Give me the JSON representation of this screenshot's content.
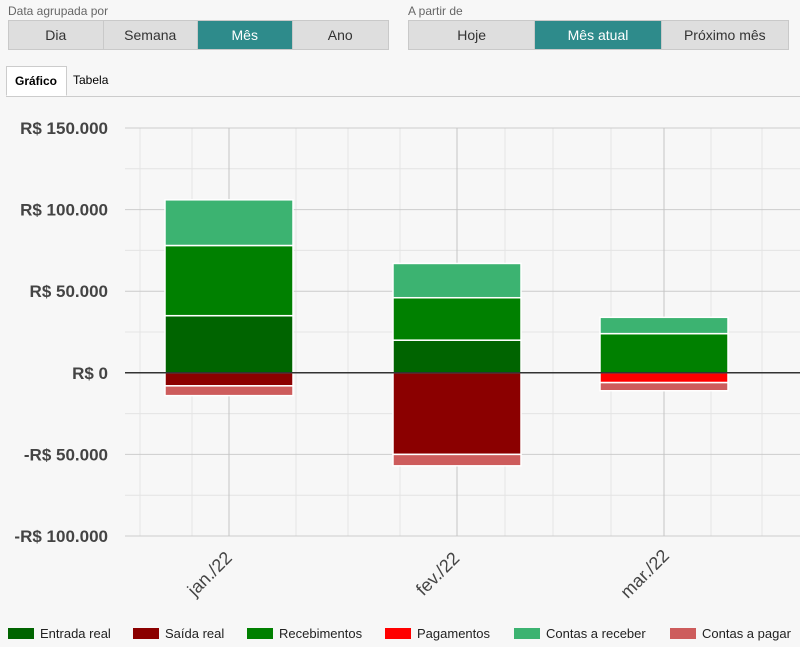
{
  "controls": {
    "grouped_by": {
      "label": "Data agrupada por",
      "options": [
        "Dia",
        "Semana",
        "Mês",
        "Ano"
      ],
      "selected": "Mês"
    },
    "starting_from": {
      "label": "A partir de",
      "options": [
        "Hoje",
        "Mês atual",
        "Próximo mês"
      ],
      "selected": "Mês atual"
    }
  },
  "tabs": {
    "chart": "Gráfico",
    "table": "Tabela",
    "active": "chart"
  },
  "chart_data": {
    "type": "bar",
    "stacked": true,
    "categories": [
      "jan./22",
      "fev./22",
      "mar./22"
    ],
    "series": [
      {
        "name": "Entrada real",
        "color": "#006400",
        "values": [
          35000,
          20000,
          0
        ]
      },
      {
        "name": "Saída real",
        "color": "#8b0000",
        "values": [
          -8000,
          -50000,
          0
        ]
      },
      {
        "name": "Recebimentos",
        "color": "#008000",
        "values": [
          43000,
          26000,
          24000
        ]
      },
      {
        "name": "Pagamentos",
        "color": "#ff0000",
        "values": [
          0,
          0,
          -6000
        ]
      },
      {
        "name": "Contas a receber",
        "color": "#3cb371",
        "values": [
          28000,
          21000,
          10000
        ]
      },
      {
        "name": "Contas a pagar",
        "color": "#cd5c5c",
        "values": [
          -6000,
          -7000,
          -5000
        ]
      }
    ],
    "y_ticks": [
      150000,
      100000,
      50000,
      0,
      -50000,
      -100000
    ],
    "y_tick_labels": [
      "R$ 150.000",
      "R$ 100.000",
      "R$ 50.000",
      "R$ 0",
      "-R$ 50.000",
      "-R$ 100.000"
    ],
    "ylim": [
      -100000,
      150000
    ],
    "grid": true,
    "legend_position": "bottom"
  }
}
